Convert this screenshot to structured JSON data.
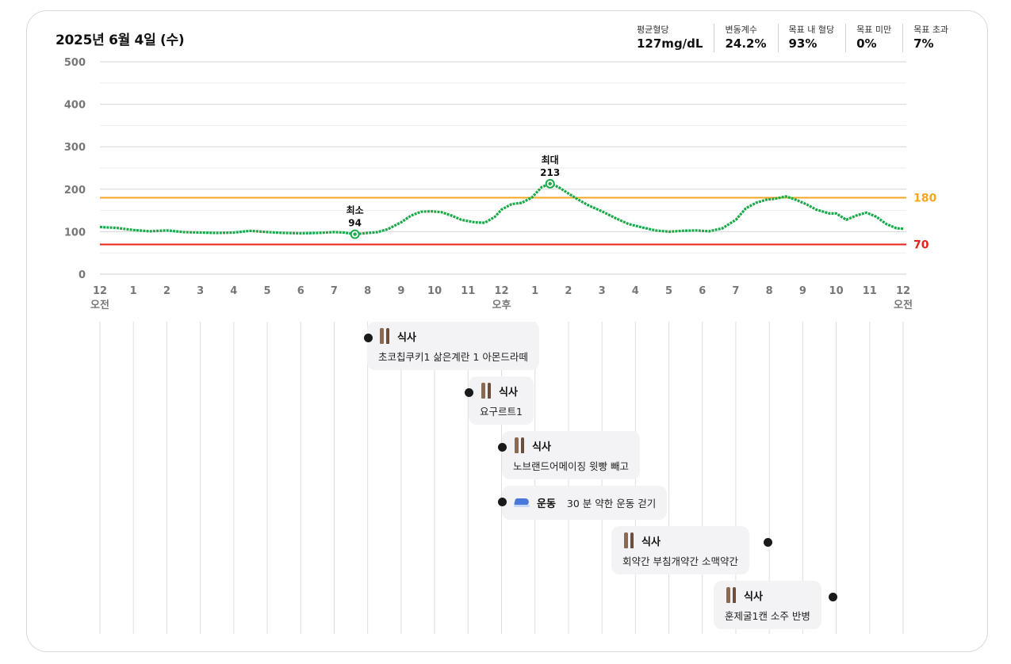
{
  "header": {
    "date": "2025년 6월 4일 (수)",
    "stats": [
      {
        "label": "평균혈당",
        "value": "127mg/dL"
      },
      {
        "label": "변동계수",
        "value": "24.2%"
      },
      {
        "label": "목표 내 혈당",
        "value": "93%"
      },
      {
        "label": "목표 미만",
        "value": "0%"
      },
      {
        "label": "목표 초과",
        "value": "7%"
      }
    ]
  },
  "chart_data": {
    "type": "line",
    "ylim": [
      0,
      500
    ],
    "yticks": [
      0,
      100,
      200,
      300,
      400,
      500
    ],
    "xlim": [
      0,
      24
    ],
    "xticks": [
      {
        "label": "12",
        "sub": "오전"
      },
      {
        "label": "1"
      },
      {
        "label": "2"
      },
      {
        "label": "3"
      },
      {
        "label": "4"
      },
      {
        "label": "5"
      },
      {
        "label": "6"
      },
      {
        "label": "7"
      },
      {
        "label": "8"
      },
      {
        "label": "9"
      },
      {
        "label": "10"
      },
      {
        "label": "11"
      },
      {
        "label": "12",
        "sub": "오후"
      },
      {
        "label": "1"
      },
      {
        "label": "2"
      },
      {
        "label": "3"
      },
      {
        "label": "4"
      },
      {
        "label": "5"
      },
      {
        "label": "6"
      },
      {
        "label": "7"
      },
      {
        "label": "8"
      },
      {
        "label": "9"
      },
      {
        "label": "10"
      },
      {
        "label": "11"
      },
      {
        "label": "12",
        "sub": "오전"
      }
    ],
    "grid": true,
    "thresholds": [
      {
        "value": 180,
        "label": "180",
        "color": "#f5a623"
      },
      {
        "value": 70,
        "label": "70",
        "color": "#e8201a"
      }
    ],
    "line_color": "#1aaa4a",
    "series": [
      {
        "x": [
          0,
          0.5,
          1,
          1.5,
          2,
          2.5,
          3,
          3.5,
          4,
          4.5,
          5,
          5.5,
          6,
          6.5,
          7,
          7.3,
          7.62,
          8,
          8.3,
          8.6,
          9,
          9.3,
          9.6,
          9.9,
          10.2,
          10.5,
          10.8,
          11.2,
          11.5,
          11.8,
          12,
          12.3,
          12.6,
          12.9,
          13.2,
          13.45,
          13.7,
          14,
          14.3,
          14.6,
          15,
          15.4,
          15.8,
          16.2,
          16.6,
          17,
          17.4,
          17.8,
          18.2,
          18.6,
          19,
          19.3,
          19.6,
          19.9,
          20.2,
          20.5,
          20.8,
          21.1,
          21.4,
          21.8,
          22,
          22.3,
          22.6,
          22.9,
          23.2,
          23.5,
          23.8,
          24
        ],
        "values": [
          111,
          109,
          104,
          101,
          103,
          99,
          98,
          97,
          98,
          102,
          99,
          97,
          96,
          97,
          99,
          98,
          94,
          97,
          99,
          106,
          122,
          138,
          147,
          148,
          146,
          138,
          128,
          122,
          121,
          135,
          152,
          165,
          168,
          180,
          205,
          213,
          205,
          190,
          175,
          162,
          148,
          132,
          118,
          110,
          103,
          100,
          102,
          103,
          101,
          108,
          128,
          155,
          168,
          175,
          178,
          183,
          175,
          165,
          152,
          143,
          143,
          128,
          138,
          145,
          135,
          118,
          108,
          107
        ]
      }
    ],
    "annotations": [
      {
        "label": "최소",
        "value": "94",
        "x": 7.62,
        "y": 94
      },
      {
        "label": "최대",
        "value": "213",
        "x": 13.45,
        "y": 213
      }
    ]
  },
  "events": [
    {
      "type": "식사",
      "icon": "fork-knife-icon",
      "desc": "초코칩쿠키1 삶은계란 1 아몬드라떼",
      "time": 8.0
    },
    {
      "type": "식사",
      "icon": "fork-knife-icon",
      "desc": "요구르트1",
      "time": 11.0
    },
    {
      "type": "식사",
      "icon": "fork-knife-icon",
      "desc": "노브랜드어메이징 윗빵 빼고",
      "time": 12.0
    },
    {
      "type": "운동",
      "icon": "running-shoe-icon",
      "desc": "30 분 약한 운동 걷기",
      "time": 12.0
    },
    {
      "type": "식사",
      "icon": "fork-knife-icon",
      "desc": "회약간 부침개약간 소맥약간",
      "time": 20.0
    },
    {
      "type": "식사",
      "icon": "fork-knife-icon",
      "desc": "훈제굴1캔 소주 반병",
      "time": 22.0
    }
  ]
}
